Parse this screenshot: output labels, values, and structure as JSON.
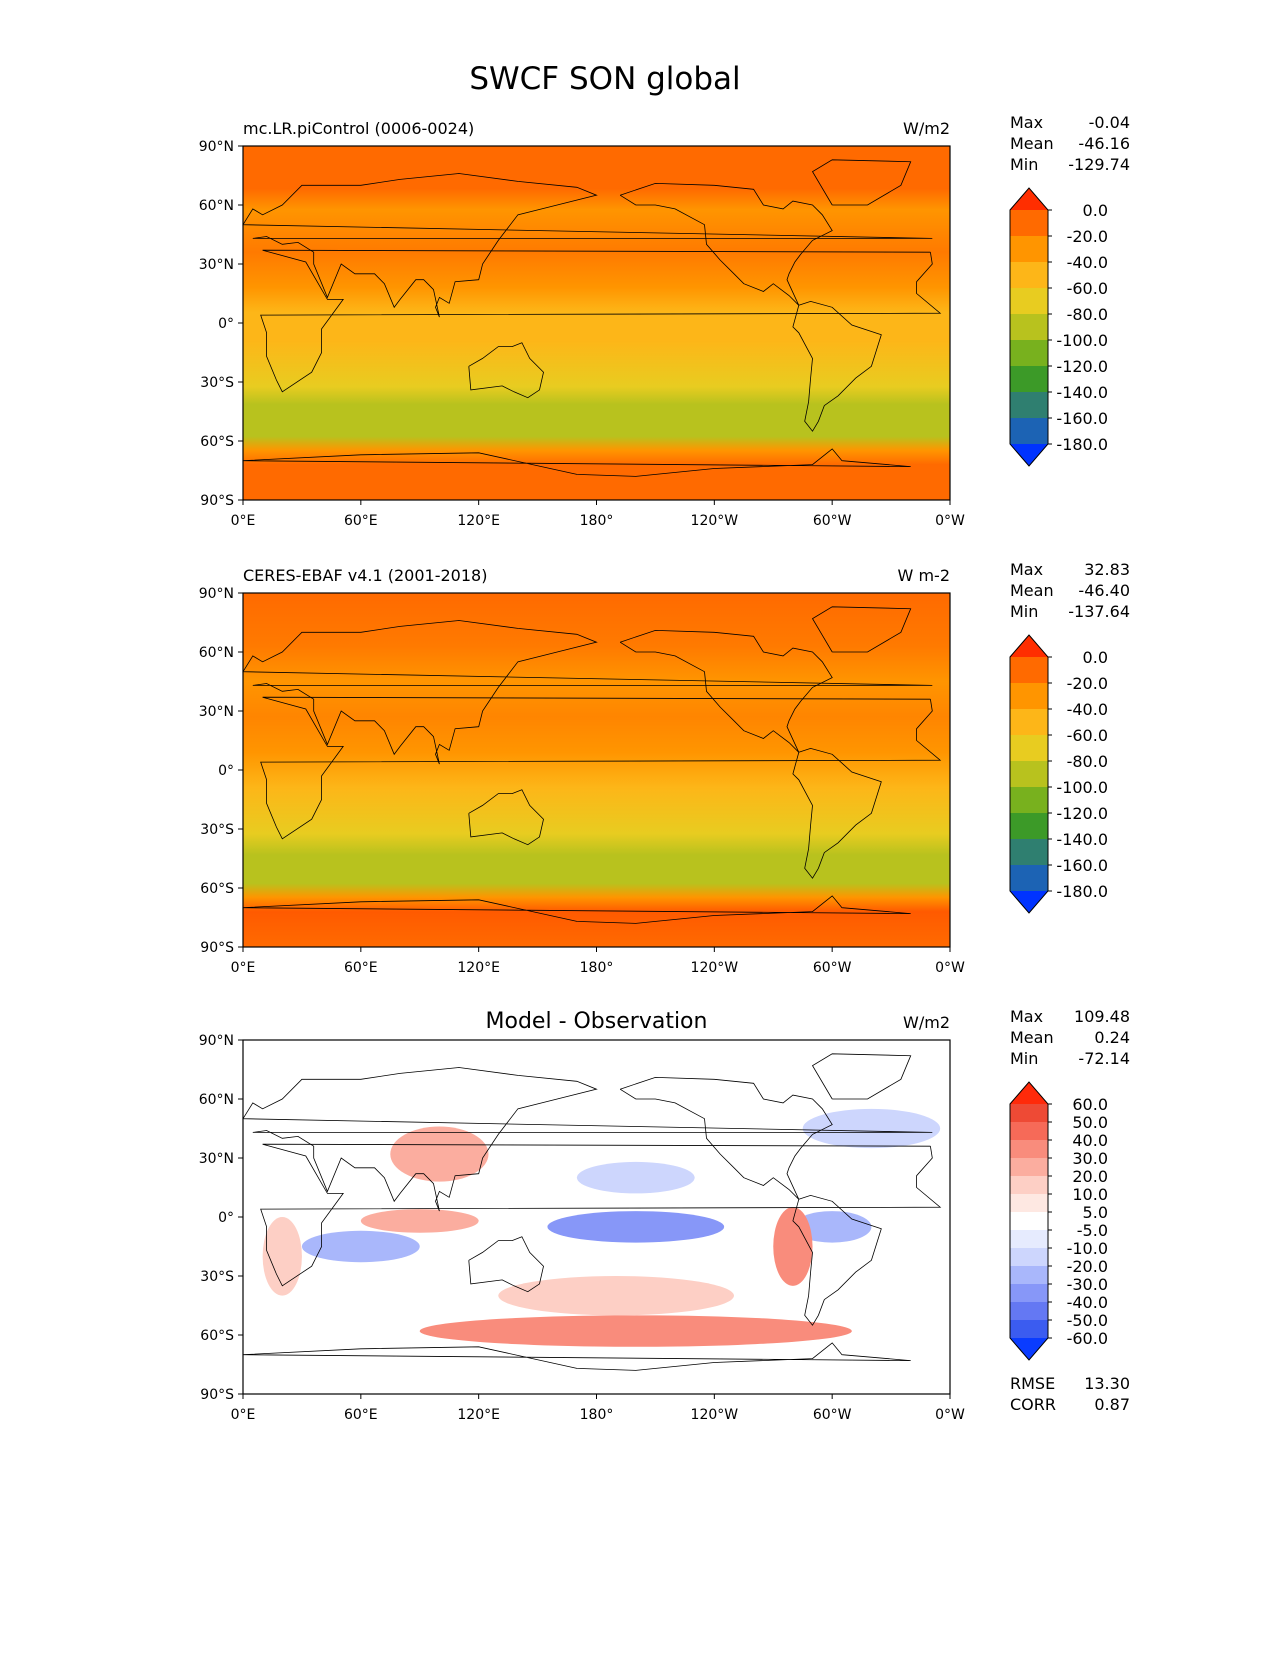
{
  "figure": {
    "title": "SWCF SON global"
  },
  "axes": {
    "lat_ticks": [
      "90°N",
      "60°N",
      "30°N",
      "0°",
      "30°S",
      "60°S",
      "90°S"
    ],
    "lon_ticks": [
      "0°E",
      "60°E",
      "120°E",
      "180°",
      "120°W",
      "60°W",
      "0°W"
    ]
  },
  "panels": [
    {
      "id": "model",
      "left_title": "mc.LR.piControl (0006-0024)",
      "center_title": "",
      "right_title": "W/m2",
      "stats": [
        {
          "label": "Max",
          "value": "-0.04"
        },
        {
          "label": "Mean",
          "value": "-46.16"
        },
        {
          "label": "Min",
          "value": "-129.74"
        }
      ],
      "colorbar": {
        "labels": [
          "0.0",
          "-20.0",
          "-40.0",
          "-60.0",
          "-80.0",
          "-100.0",
          "-120.0",
          "-140.0",
          "-160.0",
          "-180.0"
        ],
        "colors": [
          "#ff2e00",
          "#ff6a00",
          "#ff9500",
          "#fdb618",
          "#e8cc20",
          "#b8c21e",
          "#78b11e",
          "#3c9a28",
          "#2f7f70",
          "#1c63b4",
          "#0033ff"
        ]
      }
    },
    {
      "id": "obs",
      "left_title": "CERES-EBAF v4.1 (2001-2018)",
      "center_title": "",
      "right_title": "W m-2",
      "stats": [
        {
          "label": "Max",
          "value": "32.83"
        },
        {
          "label": "Mean",
          "value": "-46.40"
        },
        {
          "label": "Min",
          "value": "-137.64"
        }
      ],
      "colorbar": {
        "labels": [
          "0.0",
          "-20.0",
          "-40.0",
          "-60.0",
          "-80.0",
          "-100.0",
          "-120.0",
          "-140.0",
          "-160.0",
          "-180.0"
        ],
        "colors": [
          "#ff2e00",
          "#ff6a00",
          "#ff9500",
          "#fdb618",
          "#e8cc20",
          "#b8c21e",
          "#78b11e",
          "#3c9a28",
          "#2f7f70",
          "#1c63b4",
          "#0033ff"
        ]
      }
    },
    {
      "id": "diff",
      "left_title": "",
      "center_title": "Model - Observation",
      "right_title": "W/m2",
      "stats": [
        {
          "label": "Max",
          "value": "109.48"
        },
        {
          "label": "Mean",
          "value": "0.24"
        },
        {
          "label": "Min",
          "value": "-72.14"
        }
      ],
      "extra_stats": [
        {
          "label": "RMSE",
          "value": "13.30"
        },
        {
          "label": "CORR",
          "value": "0.87"
        }
      ],
      "colorbar": {
        "labels": [
          "60.0",
          "50.0",
          "40.0",
          "30.0",
          "20.0",
          "10.0",
          "5.0",
          "-5.0",
          "-10.0",
          "-20.0",
          "-30.0",
          "-40.0",
          "-50.0",
          "-60.0"
        ],
        "colors": [
          "#ff2a0a",
          "#ee4a35",
          "#f66a58",
          "#f98c7c",
          "#fbad9f",
          "#fdcfc5",
          "#fee8e2",
          "#ffffff",
          "#e6ebfe",
          "#cdd6fd",
          "#a9b7fb",
          "#8797f8",
          "#6478f3",
          "#3b5cf0",
          "#0a3cff"
        ]
      }
    }
  ]
}
